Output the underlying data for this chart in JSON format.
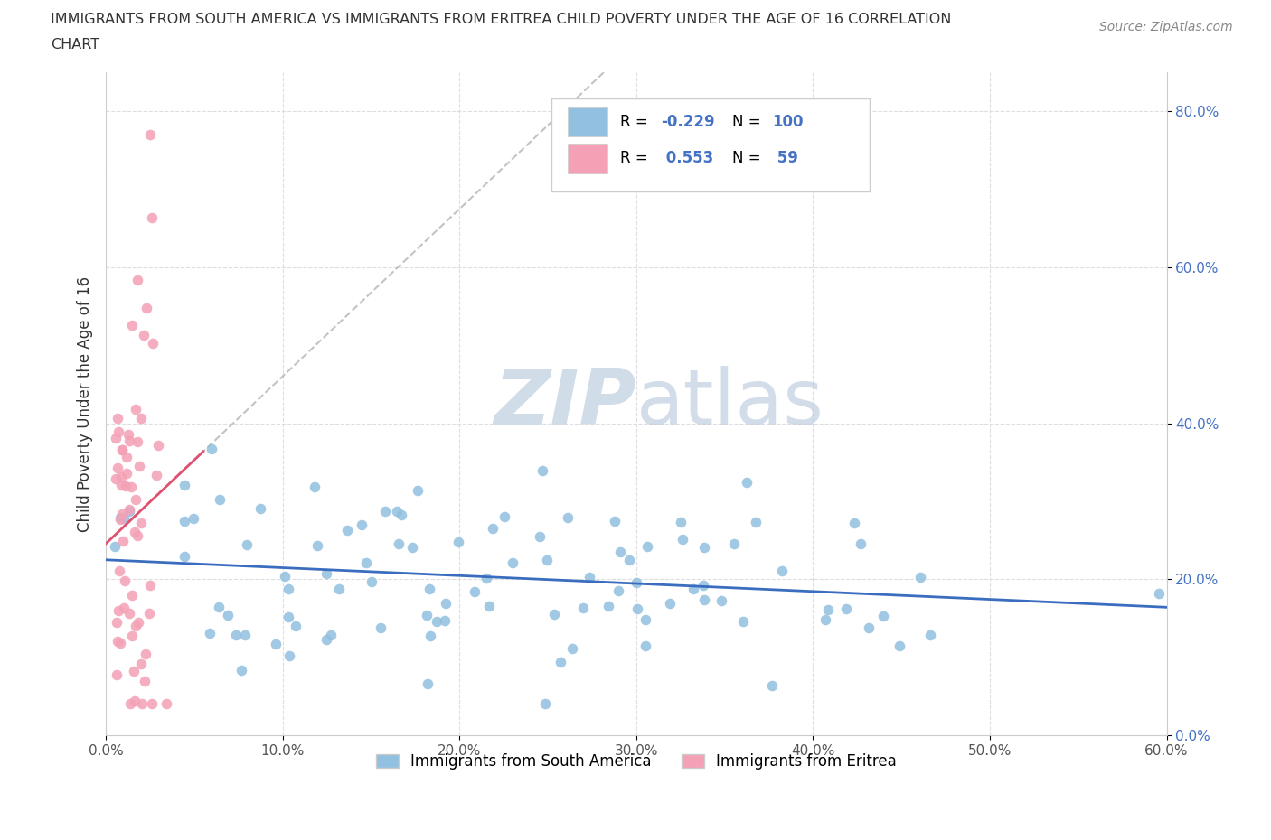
{
  "title_line1": "IMMIGRANTS FROM SOUTH AMERICA VS IMMIGRANTS FROM ERITREA CHILD POVERTY UNDER THE AGE OF 16 CORRELATION",
  "title_line2": "CHART",
  "source": "Source: ZipAtlas.com",
  "ylabel": "Child Poverty Under the Age of 16",
  "xlim": [
    0.0,
    0.6
  ],
  "ylim": [
    0.0,
    0.85
  ],
  "blue_color": "#92c0e0",
  "pink_color": "#f4a0b5",
  "blue_line_color": "#3a6dbf",
  "pink_line_color": "#e05070",
  "watermark_zip": "ZIP",
  "watermark_atlas": "atlas",
  "R_blue": -0.229,
  "N_blue": 100,
  "R_pink": 0.553,
  "N_pink": 59,
  "legend_label_blue": "Immigrants from South America",
  "legend_label_pink": "Immigrants from Eritrea",
  "legend_R_color": "#4472c4",
  "legend_N_color": "#4472c4",
  "ytick_color": "#4472c4",
  "xtick_color": "#555555",
  "grid_color": "#dddddd",
  "title_color": "#333333",
  "source_color": "#888888"
}
